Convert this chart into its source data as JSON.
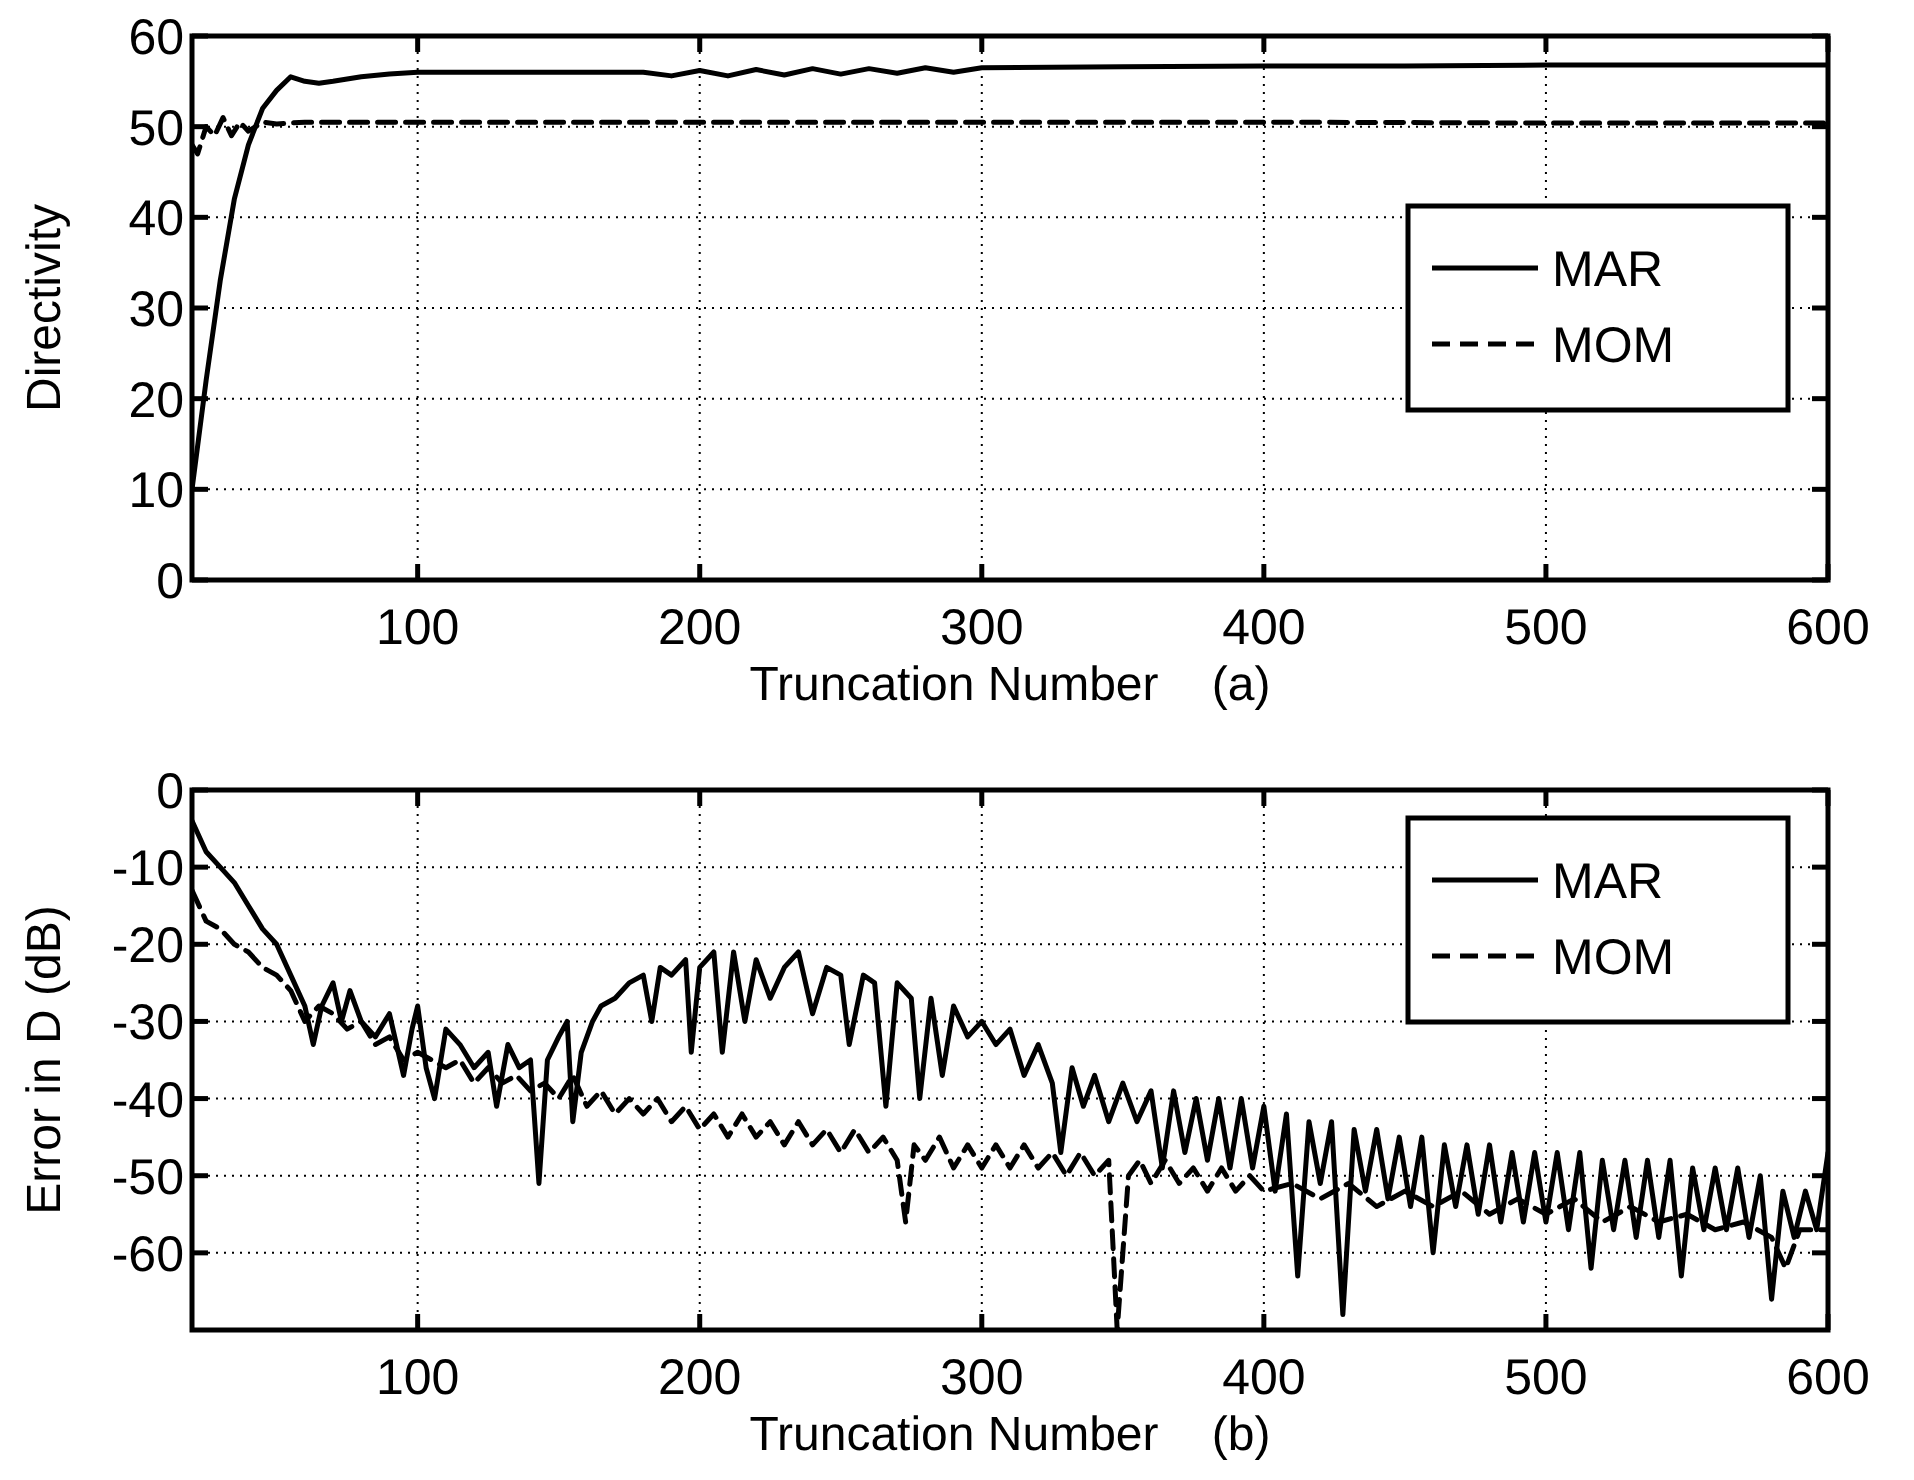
{
  "chart_data": [
    {
      "type": "line",
      "xlabel": "Truncation Number    (a)",
      "ylabel": "Directivity",
      "xlim": [
        20,
        600
      ],
      "ylim": [
        0,
        60
      ],
      "xticks": [
        100,
        200,
        300,
        400,
        500,
        600
      ],
      "yticks": [
        0,
        10,
        20,
        30,
        40,
        50,
        60
      ],
      "grid": true,
      "legend": "right",
      "series": [
        {
          "name": "MAR",
          "color": "#000000",
          "line_style": "solid",
          "x": [
            20,
            25,
            30,
            35,
            40,
            45,
            50,
            55,
            60,
            65,
            70,
            80,
            90,
            100,
            120,
            150,
            180,
            190,
            200,
            210,
            220,
            230,
            240,
            250,
            260,
            270,
            280,
            290,
            300,
            350,
            400,
            450,
            500,
            550,
            600
          ],
          "values": [
            10,
            22,
            33,
            42,
            48,
            52,
            54,
            55.5,
            55,
            54.8,
            55,
            55.5,
            55.8,
            56,
            56,
            56,
            56,
            55.6,
            56.2,
            55.6,
            56.3,
            55.7,
            56.4,
            55.8,
            56.4,
            55.9,
            56.5,
            56,
            56.5,
            56.6,
            56.7,
            56.7,
            56.8,
            56.8,
            56.8
          ]
        },
        {
          "name": "MOM",
          "color": "#000000",
          "line_style": "dashed",
          "x": [
            20,
            22,
            25,
            28,
            31,
            34,
            37,
            40,
            45,
            50,
            60,
            100,
            200,
            300,
            400,
            500,
            600
          ],
          "values": [
            48,
            47,
            50,
            49,
            51,
            49,
            50.5,
            49.5,
            50.5,
            50.3,
            50.5,
            50.5,
            50.5,
            50.5,
            50.5,
            50.4,
            50.4
          ]
        }
      ]
    },
    {
      "type": "line",
      "xlabel": "Truncation Number    (b)",
      "ylabel": "Error in D (dB)",
      "xlim": [
        20,
        600
      ],
      "ylim": [
        -70,
        0
      ],
      "xticks": [
        100,
        200,
        300,
        400,
        500,
        600
      ],
      "yticks": [
        0,
        -10,
        -20,
        -30,
        -40,
        -50,
        -60
      ],
      "grid": true,
      "legend": "top right",
      "series": [
        {
          "name": "MAR",
          "color": "#000000",
          "line_style": "solid",
          "x": [
            20,
            25,
            30,
            35,
            40,
            45,
            50,
            55,
            60,
            63,
            66,
            70,
            73,
            76,
            80,
            85,
            90,
            95,
            98,
            100,
            103,
            106,
            110,
            115,
            120,
            125,
            128,
            132,
            136,
            140,
            143,
            146,
            150,
            153,
            155,
            158,
            162,
            165,
            170,
            175,
            180,
            183,
            186,
            190,
            195,
            197,
            200,
            205,
            208,
            212,
            216,
            220,
            225,
            230,
            235,
            240,
            245,
            250,
            253,
            258,
            262,
            266,
            270,
            275,
            278,
            282,
            286,
            290,
            295,
            300,
            305,
            310,
            315,
            320,
            325,
            328,
            332,
            336,
            340,
            345,
            350,
            355,
            360,
            364,
            368,
            372,
            376,
            380,
            384,
            388,
            392,
            396,
            400,
            404,
            408,
            412,
            416,
            420,
            424,
            428,
            432,
            436,
            440,
            444,
            448,
            452,
            456,
            460,
            464,
            468,
            472,
            476,
            480,
            484,
            488,
            492,
            496,
            500,
            504,
            508,
            512,
            516,
            520,
            524,
            528,
            532,
            536,
            540,
            544,
            548,
            552,
            556,
            560,
            564,
            568,
            572,
            576,
            580,
            584,
            588,
            592,
            596,
            600
          ],
          "values": [
            -4,
            -8,
            -10,
            -12,
            -15,
            -18,
            -20,
            -24,
            -28,
            -33,
            -28,
            -25,
            -30,
            -26,
            -30,
            -32,
            -29,
            -37,
            -31,
            -28,
            -36,
            -40,
            -31,
            -33,
            -36,
            -34,
            -41,
            -33,
            -36,
            -35,
            -51,
            -35,
            -32,
            -30,
            -43,
            -34,
            -30,
            -28,
            -27,
            -25,
            -24,
            -30,
            -23,
            -24,
            -22,
            -34,
            -23,
            -21,
            -34,
            -21,
            -30,
            -22,
            -27,
            -23,
            -21,
            -29,
            -23,
            -24,
            -33,
            -24,
            -25,
            -41,
            -25,
            -27,
            -40,
            -27,
            -37,
            -28,
            -32,
            -30,
            -33,
            -31,
            -37,
            -33,
            -38,
            -47,
            -36,
            -41,
            -37,
            -43,
            -38,
            -43,
            -39,
            -49,
            -39,
            -47,
            -40,
            -48,
            -40,
            -49,
            -40,
            -49,
            -41,
            -52,
            -42,
            -63,
            -43,
            -51,
            -43,
            -68,
            -44,
            -52,
            -44,
            -53,
            -45,
            -54,
            -45,
            -60,
            -46,
            -54,
            -46,
            -55,
            -46,
            -56,
            -47,
            -56,
            -47,
            -56,
            -47,
            -57,
            -47,
            -62,
            -48,
            -57,
            -48,
            -58,
            -48,
            -58,
            -48,
            -63,
            -49,
            -57,
            -49,
            -57,
            -49,
            -58,
            -50,
            -66,
            -52,
            -58,
            -52,
            -57,
            -47
          ]
        },
        {
          "name": "MOM",
          "color": "#000000",
          "line_style": "dashed",
          "x": [
            20,
            25,
            30,
            35,
            40,
            45,
            50,
            55,
            60,
            65,
            70,
            75,
            80,
            85,
            90,
            95,
            100,
            110,
            115,
            120,
            125,
            130,
            135,
            140,
            145,
            150,
            155,
            160,
            165,
            170,
            175,
            180,
            185,
            190,
            195,
            200,
            205,
            210,
            215,
            220,
            225,
            230,
            235,
            240,
            245,
            250,
            255,
            260,
            265,
            270,
            273,
            276,
            280,
            285,
            290,
            295,
            300,
            305,
            310,
            315,
            320,
            325,
            330,
            335,
            340,
            345,
            348,
            352,
            356,
            360,
            365,
            370,
            375,
            380,
            385,
            390,
            395,
            400,
            410,
            420,
            430,
            440,
            450,
            460,
            470,
            480,
            490,
            500,
            510,
            520,
            530,
            540,
            550,
            560,
            570,
            580,
            585,
            590,
            600
          ],
          "values": [
            -13,
            -17,
            -18,
            -20,
            -21,
            -23,
            -24,
            -26,
            -30,
            -28,
            -29,
            -31,
            -30,
            -33,
            -32,
            -35,
            -34,
            -36,
            -35,
            -38,
            -36,
            -38,
            -37,
            -39,
            -38,
            -40,
            -37,
            -41,
            -39,
            -42,
            -40,
            -42,
            -40,
            -43,
            -41,
            -44,
            -42,
            -45,
            -42,
            -45,
            -43,
            -46,
            -43,
            -46,
            -44,
            -47,
            -44,
            -47,
            -45,
            -48,
            -56,
            -46,
            -48,
            -45,
            -49,
            -46,
            -49,
            -46,
            -49,
            -46,
            -49,
            -47,
            -50,
            -47,
            -50,
            -48,
            -70,
            -50,
            -48,
            -51,
            -48,
            -51,
            -49,
            -52,
            -49,
            -52,
            -50,
            -52,
            -51,
            -53,
            -51,
            -54,
            -52,
            -54,
            -52,
            -55,
            -53,
            -55,
            -53,
            -56,
            -54,
            -56,
            -55,
            -57,
            -56,
            -58,
            -62,
            -57,
            -57
          ]
        }
      ]
    }
  ]
}
